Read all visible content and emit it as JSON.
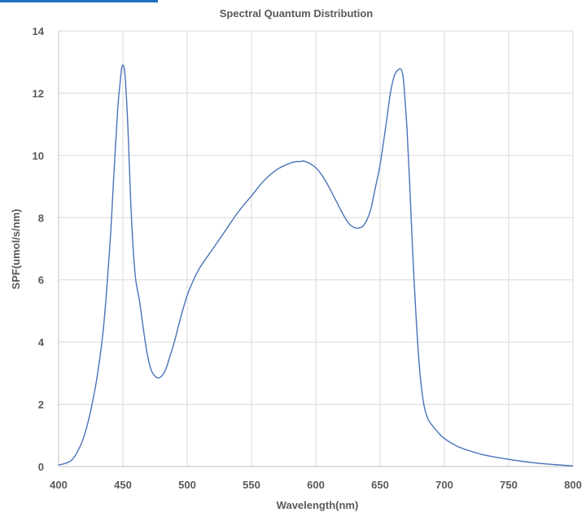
{
  "chart_data": {
    "type": "line",
    "title": "Spectral Quantum Distribution",
    "xlabel": "Wavelength(nm)",
    "ylabel": "SPF(umol/s/nm)",
    "xlim": [
      400,
      800
    ],
    "ylim": [
      0,
      14
    ],
    "x_ticks": [
      400,
      450,
      500,
      550,
      600,
      650,
      700,
      750,
      800
    ],
    "y_ticks": [
      0,
      2,
      4,
      6,
      8,
      10,
      12,
      14
    ],
    "grid": true,
    "legend": "none",
    "series": [
      {
        "color": "#4a72b8",
        "x": [
          400,
          405,
          410,
          415,
          420,
          425,
          430,
          435,
          440,
          443,
          446,
          448,
          449,
          450,
          451,
          452,
          454,
          456,
          458,
          460,
          463,
          466,
          469,
          472,
          475,
          478,
          481,
          484,
          487,
          490,
          495,
          500,
          505,
          510,
          520,
          530,
          540,
          550,
          560,
          570,
          580,
          585,
          588,
          590,
          592,
          595,
          600,
          605,
          610,
          615,
          620,
          625,
          630,
          635,
          638,
          640,
          643,
          646,
          650,
          655,
          658,
          661,
          664,
          666,
          667,
          668,
          669,
          671,
          673,
          675,
          678,
          681,
          684,
          687,
          690,
          695,
          700,
          710,
          720,
          730,
          740,
          750,
          760,
          770,
          780,
          790,
          800
        ],
        "y": [
          0.05,
          0.1,
          0.2,
          0.5,
          1.0,
          1.8,
          2.9,
          4.5,
          7.2,
          9.4,
          11.5,
          12.4,
          12.8,
          12.9,
          12.8,
          12.4,
          10.8,
          8.6,
          7.0,
          6.0,
          5.3,
          4.4,
          3.6,
          3.1,
          2.9,
          2.85,
          2.95,
          3.2,
          3.6,
          4.0,
          4.8,
          5.5,
          6.0,
          6.4,
          7.0,
          7.6,
          8.2,
          8.7,
          9.2,
          9.55,
          9.75,
          9.8,
          9.8,
          9.82,
          9.8,
          9.75,
          9.6,
          9.35,
          9.0,
          8.6,
          8.2,
          7.85,
          7.68,
          7.68,
          7.8,
          7.95,
          8.3,
          8.9,
          9.7,
          11.1,
          12.0,
          12.55,
          12.75,
          12.78,
          12.7,
          12.5,
          12.0,
          10.8,
          9.1,
          7.2,
          4.8,
          3.0,
          2.0,
          1.55,
          1.35,
          1.1,
          0.9,
          0.65,
          0.5,
          0.38,
          0.3,
          0.23,
          0.17,
          0.12,
          0.08,
          0.05,
          0.02
        ]
      }
    ]
  }
}
